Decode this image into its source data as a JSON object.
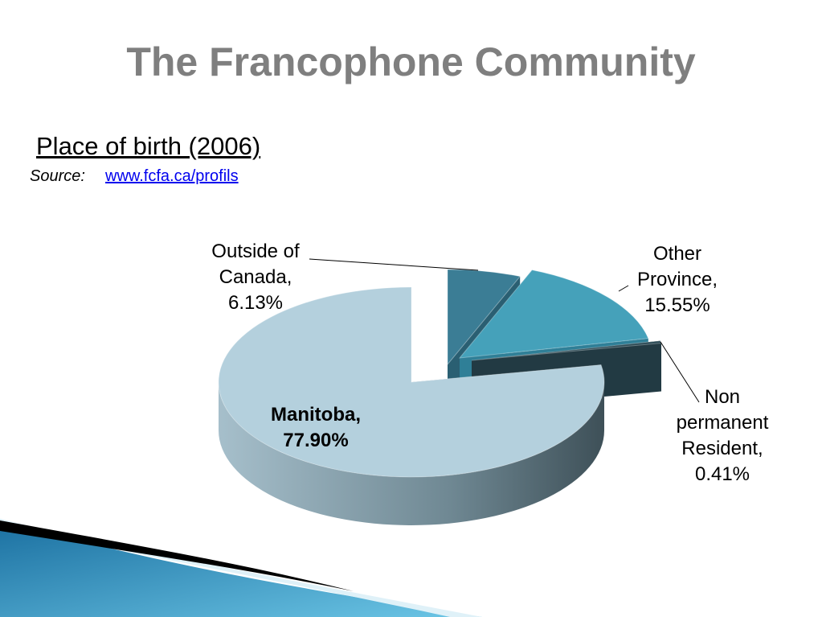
{
  "chart_data": {
    "type": "pie",
    "title": "The Francophone Community",
    "subtitle": "Place of birth (2006)",
    "source_label": "Source:",
    "source_link": "www.fcfa.ca/profils",
    "categories": [
      "Outside of Canada,",
      "Other Province,",
      "Non permanent Resident,",
      "Manitoba,"
    ],
    "values": [
      6.13,
      15.55,
      0.41,
      77.9
    ],
    "value_labels": [
      "6.13%",
      "15.55%",
      "0.41%",
      "77.90%"
    ],
    "colors": [
      "#3b7d95",
      "#45a1ba",
      "#2e4c57",
      "#b4d0dd"
    ]
  }
}
